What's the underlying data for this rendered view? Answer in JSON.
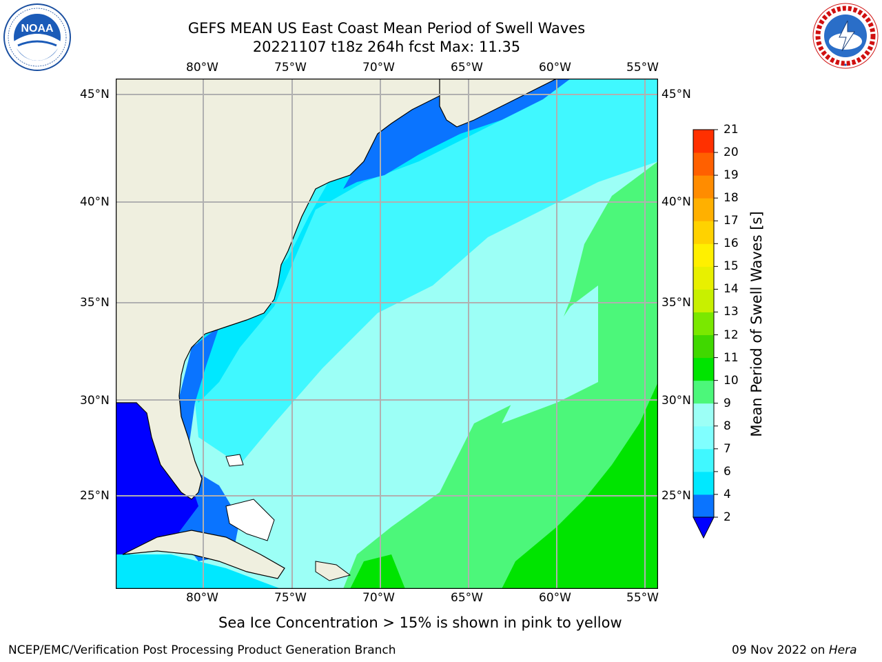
{
  "header": {
    "title_line1": "GEFS MEAN US East Coast Mean Period of Swell Waves",
    "title_line2": "20221107 t18z 264h fcst   Max: 11.35"
  },
  "logos": {
    "noaa_text": "NOAA",
    "noaa_ring_text": "NATIONAL OCEANIC AND ATMOSPHERIC ADMINISTRATION · U.S. DEPARTMENT OF COMMERCE",
    "nws_ring_text": "NATIONAL WEATHER SERVICE"
  },
  "map": {
    "lon_labels": [
      "80°W",
      "75°W",
      "70°W",
      "65°W",
      "60°W",
      "55°W"
    ],
    "lat_labels": [
      "45°N",
      "40°N",
      "35°N",
      "30°N",
      "25°N"
    ],
    "land_color": "#efefdf",
    "grid_color": "#b0b0b0"
  },
  "colorbar": {
    "label": "Mean Period of Swell Waves [s]",
    "tick_labels": [
      "2",
      "4",
      "6",
      "7",
      "8",
      "9",
      "10",
      "11",
      "12",
      "13",
      "14",
      "15",
      "16",
      "17",
      "18",
      "19",
      "20",
      "21"
    ],
    "colors": [
      "#0a74ff",
      "#00e8ff",
      "#40f8ff",
      "#80ffff",
      "#9cfff6",
      "#4cf77a",
      "#00e400",
      "#40d800",
      "#7ae800",
      "#c8f000",
      "#e8f000",
      "#fff000",
      "#ffd200",
      "#ffb000",
      "#ff8c00",
      "#ff6000",
      "#ff3000",
      "#ff0000"
    ],
    "extend_color": "#0000ff"
  },
  "footer": {
    "sea_ice_note": "Sea Ice Concentration > 15% is shown in pink to yellow",
    "credit": "NCEP/EMC/Verification Post Processing Product Generation Branch",
    "date": "09 Nov 2022 on",
    "machine": "Hera"
  }
}
